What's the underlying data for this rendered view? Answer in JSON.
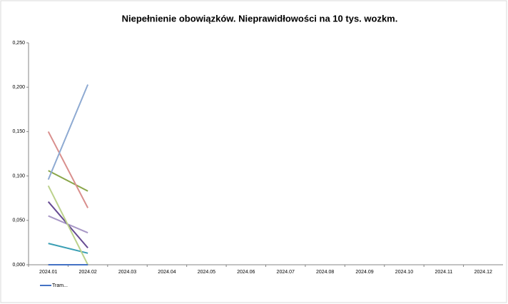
{
  "chart_data": {
    "type": "line",
    "title": "Niepełnienie obowiązków. Nieprawidłowości na 10 tys. wozkm.",
    "categories": [
      "2024.01",
      "2024.02",
      "2024.03",
      "2024.04",
      "2024.05",
      "2024.06",
      "2024.07",
      "2024.08",
      "2024.09",
      "2024.10",
      "2024.11",
      "2024.12"
    ],
    "ylim": [
      0,
      0.25
    ],
    "yticks": [
      {
        "value": 0,
        "label": "0,000"
      },
      {
        "value": 0.05,
        "label": "0,050"
      },
      {
        "value": 0.1,
        "label": "0,100"
      },
      {
        "value": 0.15,
        "label": "0,150"
      },
      {
        "value": 0.2,
        "label": "0,200"
      },
      {
        "value": 0.25,
        "label": "0,250"
      }
    ],
    "series": [
      {
        "name": "Tram...",
        "color": "#4472c4",
        "values": [
          0,
          0,
          null,
          null,
          null,
          null,
          null,
          null,
          null,
          null,
          null,
          null
        ]
      },
      {
        "color": "#8eaad2",
        "values": [
          0.096,
          0.203,
          null,
          null,
          null,
          null,
          null,
          null,
          null,
          null,
          null,
          null
        ]
      },
      {
        "color": "#d98f8d",
        "values": [
          0.15,
          0.064,
          null,
          null,
          null,
          null,
          null,
          null,
          null,
          null,
          null,
          null
        ]
      },
      {
        "color": "#8aa64a",
        "values": [
          0.106,
          0.083,
          null,
          null,
          null,
          null,
          null,
          null,
          null,
          null,
          null,
          null
        ]
      },
      {
        "color": "#bcd28c",
        "values": [
          0.089,
          0,
          null,
          null,
          null,
          null,
          null,
          null,
          null,
          null,
          null,
          null
        ]
      },
      {
        "color": "#664a92",
        "values": [
          0.071,
          0.019,
          null,
          null,
          null,
          null,
          null,
          null,
          null,
          null,
          null,
          null
        ]
      },
      {
        "color": "#a898c6",
        "values": [
          0.055,
          0.036,
          null,
          null,
          null,
          null,
          null,
          null,
          null,
          null,
          null,
          null
        ]
      },
      {
        "color": "#3a9fb4",
        "values": [
          0.024,
          0.013,
          null,
          null,
          null,
          null,
          null,
          null,
          null,
          null,
          null,
          null
        ]
      },
      {
        "color": "#e07b2a",
        "values": [
          0,
          0,
          null,
          null,
          null,
          null,
          null,
          null,
          null,
          null,
          null,
          null
        ]
      }
    ]
  }
}
